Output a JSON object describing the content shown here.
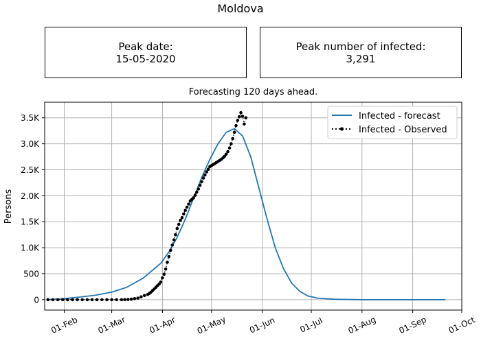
{
  "title": "Moldova",
  "info_boxes": {
    "peak_date_label": "Peak date:",
    "peak_date_value": "15-05-2020",
    "peak_infected_label": "Peak number of infected:",
    "peak_infected_value": "3,291"
  },
  "chart_data": {
    "type": "line",
    "title": "Forecasting 120 days ahead.",
    "xlabel": "",
    "ylabel": "Persons",
    "x_range": [
      "2020-01-20",
      "2020-10-01"
    ],
    "ylim": [
      -200,
      3800
    ],
    "grid": true,
    "legend_position": "upper-right",
    "x_tick_labels": [
      "01-Feb",
      "01-Mar",
      "01-Apr",
      "01-May",
      "01-Jun",
      "01-Jul",
      "01-Aug",
      "01-Sep",
      "01-Oct"
    ],
    "x_tick_dates": [
      "2020-02-01",
      "2020-03-01",
      "2020-04-01",
      "2020-05-01",
      "2020-06-01",
      "2020-07-01",
      "2020-08-01",
      "2020-09-01",
      "2020-10-01"
    ],
    "y_ticks": [
      0,
      500,
      1000,
      1500,
      2000,
      2500,
      3000,
      3500
    ],
    "y_tick_labels": [
      "0",
      "500",
      "1.0K",
      "1.5K",
      "2.0K",
      "2.5K",
      "3.0K",
      "3.5K"
    ],
    "series": [
      {
        "name": "Infected - forecast",
        "color": "#1f77b4",
        "style": "solid",
        "points": [
          [
            "2020-01-22",
            0
          ],
          [
            "2020-02-01",
            20
          ],
          [
            "2020-02-10",
            50
          ],
          [
            "2020-02-20",
            85
          ],
          [
            "2020-03-01",
            145
          ],
          [
            "2020-03-10",
            235
          ],
          [
            "2020-03-20",
            410
          ],
          [
            "2020-03-31",
            700
          ],
          [
            "2020-04-05",
            920
          ],
          [
            "2020-04-10",
            1200
          ],
          [
            "2020-04-15",
            1550
          ],
          [
            "2020-04-20",
            1950
          ],
          [
            "2020-04-25",
            2350
          ],
          [
            "2020-04-30",
            2700
          ],
          [
            "2020-05-05",
            3000
          ],
          [
            "2020-05-10",
            3220
          ],
          [
            "2020-05-15",
            3291
          ],
          [
            "2020-05-20",
            3150
          ],
          [
            "2020-05-25",
            2750
          ],
          [
            "2020-05-30",
            2150
          ],
          [
            "2020-06-04",
            1550
          ],
          [
            "2020-06-09",
            1000
          ],
          [
            "2020-06-14",
            600
          ],
          [
            "2020-06-19",
            320
          ],
          [
            "2020-06-24",
            160
          ],
          [
            "2020-06-29",
            70
          ],
          [
            "2020-07-05",
            30
          ],
          [
            "2020-07-15",
            8
          ],
          [
            "2020-08-01",
            0
          ],
          [
            "2020-09-01",
            0
          ],
          [
            "2020-09-21",
            0
          ]
        ]
      },
      {
        "name": "Infected - Observed",
        "color": "#000000",
        "style": "dotted-with-markers",
        "points": [
          [
            "2020-01-22",
            0
          ],
          [
            "2020-01-25",
            0
          ],
          [
            "2020-01-28",
            0
          ],
          [
            "2020-01-31",
            0
          ],
          [
            "2020-02-03",
            0
          ],
          [
            "2020-02-06",
            0
          ],
          [
            "2020-02-09",
            0
          ],
          [
            "2020-02-12",
            0
          ],
          [
            "2020-02-15",
            0
          ],
          [
            "2020-02-18",
            0
          ],
          [
            "2020-02-21",
            0
          ],
          [
            "2020-02-24",
            0
          ],
          [
            "2020-02-27",
            0
          ],
          [
            "2020-03-01",
            0
          ],
          [
            "2020-03-04",
            0
          ],
          [
            "2020-03-07",
            0
          ],
          [
            "2020-03-09",
            1
          ],
          [
            "2020-03-11",
            5
          ],
          [
            "2020-03-13",
            10
          ],
          [
            "2020-03-15",
            20
          ],
          [
            "2020-03-17",
            30
          ],
          [
            "2020-03-19",
            55
          ],
          [
            "2020-03-21",
            80
          ],
          [
            "2020-03-23",
            100
          ],
          [
            "2020-03-24",
            120
          ],
          [
            "2020-03-25",
            145
          ],
          [
            "2020-03-26",
            175
          ],
          [
            "2020-03-27",
            205
          ],
          [
            "2020-03-28",
            240
          ],
          [
            "2020-03-29",
            270
          ],
          [
            "2020-03-30",
            300
          ],
          [
            "2020-03-31",
            340
          ],
          [
            "2020-04-01",
            420
          ],
          [
            "2020-04-02",
            490
          ],
          [
            "2020-04-03",
            590
          ],
          [
            "2020-04-04",
            720
          ],
          [
            "2020-04-05",
            830
          ],
          [
            "2020-04-06",
            950
          ],
          [
            "2020-04-07",
            1050
          ],
          [
            "2020-04-08",
            1150
          ],
          [
            "2020-04-09",
            1250
          ],
          [
            "2020-04-10",
            1370
          ],
          [
            "2020-04-11",
            1450
          ],
          [
            "2020-04-12",
            1530
          ],
          [
            "2020-04-13",
            1580
          ],
          [
            "2020-04-14",
            1650
          ],
          [
            "2020-04-15",
            1720
          ],
          [
            "2020-04-16",
            1780
          ],
          [
            "2020-04-17",
            1840
          ],
          [
            "2020-04-18",
            1900
          ],
          [
            "2020-04-19",
            1930
          ],
          [
            "2020-04-20",
            1960
          ],
          [
            "2020-04-21",
            2010
          ],
          [
            "2020-04-22",
            2070
          ],
          [
            "2020-04-23",
            2130
          ],
          [
            "2020-04-24",
            2200
          ],
          [
            "2020-04-25",
            2270
          ],
          [
            "2020-04-26",
            2340
          ],
          [
            "2020-04-27",
            2400
          ],
          [
            "2020-04-28",
            2460
          ],
          [
            "2020-04-29",
            2510
          ],
          [
            "2020-04-30",
            2560
          ],
          [
            "2020-05-01",
            2580
          ],
          [
            "2020-05-02",
            2600
          ],
          [
            "2020-05-03",
            2620
          ],
          [
            "2020-05-04",
            2640
          ],
          [
            "2020-05-05",
            2660
          ],
          [
            "2020-05-06",
            2680
          ],
          [
            "2020-05-07",
            2700
          ],
          [
            "2020-05-08",
            2730
          ],
          [
            "2020-05-09",
            2760
          ],
          [
            "2020-05-10",
            2800
          ],
          [
            "2020-05-11",
            2850
          ],
          [
            "2020-05-12",
            2920
          ],
          [
            "2020-05-13",
            3000
          ],
          [
            "2020-05-14",
            3100
          ],
          [
            "2020-05-15",
            3220
          ],
          [
            "2020-05-16",
            3350
          ],
          [
            "2020-05-17",
            3450
          ],
          [
            "2020-05-18",
            3520
          ],
          [
            "2020-05-19",
            3600
          ],
          [
            "2020-05-20",
            3530
          ],
          [
            "2020-05-21",
            3380
          ],
          [
            "2020-05-22",
            3500
          ]
        ]
      }
    ]
  }
}
